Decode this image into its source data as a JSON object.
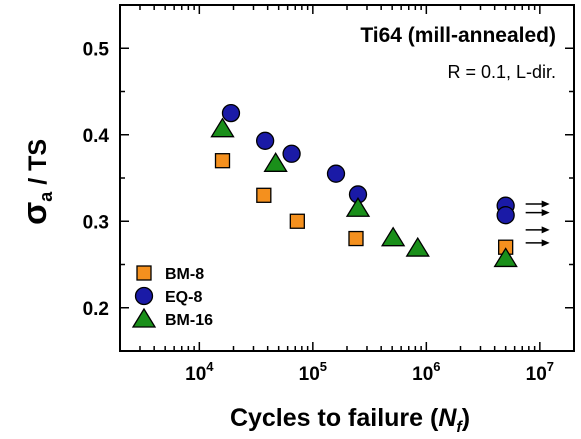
{
  "chart_data": {
    "type": "scatter",
    "title": "Ti64 (mill-annealed)",
    "subtitle": "R = 0.1, L-dir.",
    "xlabel": "Cycles to failure (N_f)",
    "xlabel_main": "Cycles to failure (",
    "xlabel_var": "N",
    "xlabel_sub": "f",
    "xlabel_close": ")",
    "ylabel": "σa / TS",
    "ylabel_sigma": "σ",
    "ylabel_sub": "a",
    "ylabel_rest": " / TS",
    "xscale": "log",
    "xlim": [
      2000,
      20000000
    ],
    "ylim": [
      0.15,
      0.55
    ],
    "grid": false,
    "legend_position": "bottom-left",
    "x_ticks": [
      {
        "value": 10000,
        "label_base": "10",
        "label_exp": "4"
      },
      {
        "value": 100000,
        "label_base": "10",
        "label_exp": "5"
      },
      {
        "value": 1000000,
        "label_base": "10",
        "label_exp": "6"
      },
      {
        "value": 10000000,
        "label_base": "10",
        "label_exp": "7"
      }
    ],
    "y_ticks": [
      {
        "value": 0.2,
        "label": "0.2"
      },
      {
        "value": 0.3,
        "label": "0.3"
      },
      {
        "value": 0.4,
        "label": "0.4"
      },
      {
        "value": 0.5,
        "label": "0.5"
      }
    ],
    "series": [
      {
        "name": "BM-8",
        "marker": "square",
        "color": "#f4901e",
        "points": [
          {
            "x": 16000,
            "y": 0.37
          },
          {
            "x": 37000,
            "y": 0.33
          },
          {
            "x": 73000,
            "y": 0.3
          },
          {
            "x": 240000,
            "y": 0.28
          },
          {
            "x": 5000000,
            "y": 0.27,
            "runout": true
          }
        ]
      },
      {
        "name": "EQ-8",
        "marker": "circle",
        "color": "#1a1aa6",
        "points": [
          {
            "x": 19000,
            "y": 0.425
          },
          {
            "x": 38000,
            "y": 0.393
          },
          {
            "x": 65000,
            "y": 0.378
          },
          {
            "x": 160000,
            "y": 0.355
          },
          {
            "x": 250000,
            "y": 0.331
          },
          {
            "x": 5000000,
            "y": 0.318,
            "runout": true
          },
          {
            "x": 5000000,
            "y": 0.307,
            "runout": true
          }
        ]
      },
      {
        "name": "BM-16",
        "marker": "triangle",
        "color": "#1a8f1a",
        "points": [
          {
            "x": 16000,
            "y": 0.407
          },
          {
            "x": 47000,
            "y": 0.367
          },
          {
            "x": 250000,
            "y": 0.315
          },
          {
            "x": 510000,
            "y": 0.281
          },
          {
            "x": 840000,
            "y": 0.269
          },
          {
            "x": 5000000,
            "y": 0.257,
            "runout": true
          }
        ]
      }
    ],
    "runout_arrows_y": [
      0.31,
      0.32,
      0.29,
      0.275
    ]
  }
}
